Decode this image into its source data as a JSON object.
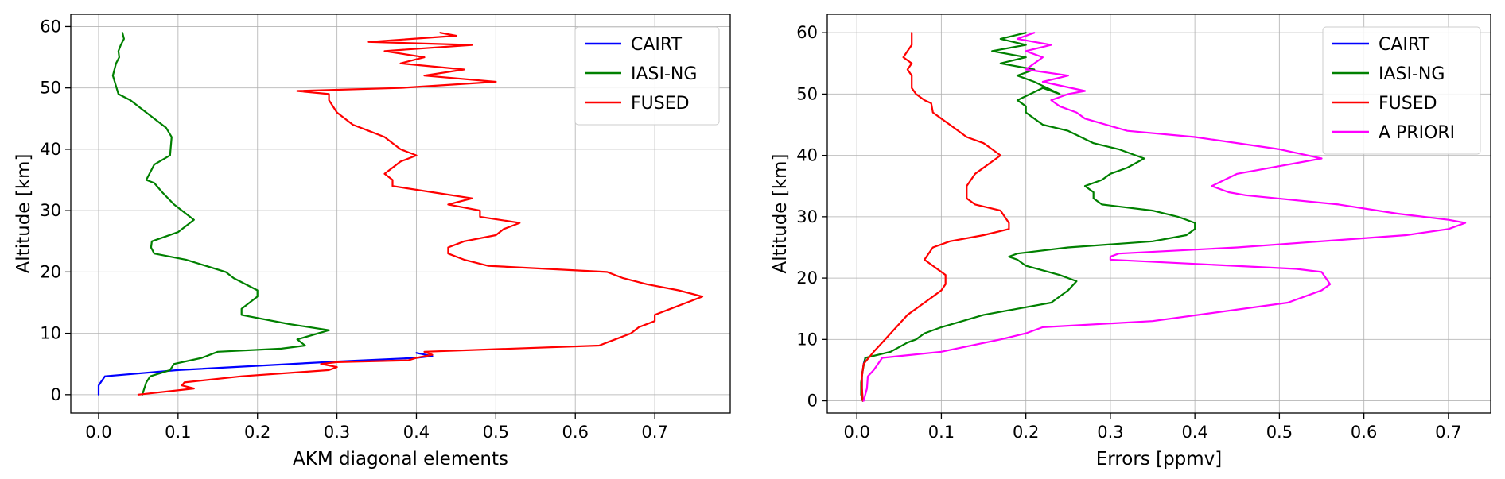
{
  "chart_data": [
    {
      "type": "line",
      "xlabel": "AKM diagonal elements",
      "ylabel": "Altitude [km]",
      "xlim": [
        -0.035,
        0.795
      ],
      "ylim": [
        -3,
        62
      ],
      "xticks": [
        "0.0",
        "0.1",
        "0.2",
        "0.3",
        "0.4",
        "0.5",
        "0.6",
        "0.7"
      ],
      "yticks": [
        "0",
        "10",
        "20",
        "30",
        "40",
        "50",
        "60"
      ],
      "grid": true,
      "legend_position": "upper right",
      "series": [
        {
          "name": "CAIRT",
          "color": "#0000ff",
          "points": [
            [
              0.0,
              0
            ],
            [
              0.0,
              1.5
            ],
            [
              0.008,
              3
            ],
            [
              0.1,
              4
            ],
            [
              0.2,
              4.7
            ],
            [
              0.3,
              5.4
            ],
            [
              0.4,
              6
            ],
            [
              0.42,
              6.3
            ],
            [
              0.4,
              6.8
            ]
          ]
        },
        {
          "name": "IASI-NG",
          "color": "#008000",
          "points": [
            [
              0.055,
              0
            ],
            [
              0.06,
              2
            ],
            [
              0.065,
              3
            ],
            [
              0.09,
              4
            ],
            [
              0.095,
              5
            ],
            [
              0.13,
              6
            ],
            [
              0.15,
              7
            ],
            [
              0.23,
              7.5
            ],
            [
              0.26,
              8
            ],
            [
              0.25,
              9
            ],
            [
              0.29,
              10.5
            ],
            [
              0.24,
              11.5
            ],
            [
              0.18,
              13
            ],
            [
              0.18,
              14
            ],
            [
              0.19,
              15
            ],
            [
              0.2,
              16
            ],
            [
              0.2,
              17
            ],
            [
              0.17,
              19
            ],
            [
              0.16,
              20
            ],
            [
              0.11,
              22
            ],
            [
              0.07,
              23
            ],
            [
              0.066,
              24
            ],
            [
              0.067,
              25
            ],
            [
              0.1,
              26.5
            ],
            [
              0.12,
              28.5
            ],
            [
              0.11,
              29.5
            ],
            [
              0.095,
              31
            ],
            [
              0.08,
              33
            ],
            [
              0.07,
              34.5
            ],
            [
              0.06,
              35
            ],
            [
              0.064,
              36
            ],
            [
              0.07,
              37.5
            ],
            [
              0.09,
              39
            ],
            [
              0.092,
              42
            ],
            [
              0.085,
              43.5
            ],
            [
              0.06,
              46
            ],
            [
              0.04,
              48
            ],
            [
              0.025,
              49
            ],
            [
              0.018,
              52
            ],
            [
              0.022,
              54
            ],
            [
              0.026,
              55
            ],
            [
              0.025,
              56
            ],
            [
              0.028,
              57
            ],
            [
              0.032,
              58
            ],
            [
              0.03,
              59
            ]
          ]
        },
        {
          "name": "FUSED",
          "color": "#ff0000",
          "points": [
            [
              0.05,
              0
            ],
            [
              0.12,
              1
            ],
            [
              0.105,
              1.5
            ],
            [
              0.108,
              2
            ],
            [
              0.18,
              3
            ],
            [
              0.29,
              4
            ],
            [
              0.3,
              4.5
            ],
            [
              0.28,
              5
            ],
            [
              0.3,
              5.3
            ],
            [
              0.39,
              5.6
            ],
            [
              0.4,
              6
            ],
            [
              0.42,
              6.5
            ],
            [
              0.41,
              7
            ],
            [
              0.63,
              8
            ],
            [
              0.65,
              9
            ],
            [
              0.67,
              10
            ],
            [
              0.68,
              11
            ],
            [
              0.7,
              12
            ],
            [
              0.7,
              13
            ],
            [
              0.72,
              14
            ],
            [
              0.74,
              15
            ],
            [
              0.76,
              16
            ],
            [
              0.73,
              17
            ],
            [
              0.69,
              18
            ],
            [
              0.66,
              19
            ],
            [
              0.64,
              20
            ],
            [
              0.49,
              21
            ],
            [
              0.46,
              22
            ],
            [
              0.44,
              23
            ],
            [
              0.44,
              24
            ],
            [
              0.46,
              25
            ],
            [
              0.5,
              26
            ],
            [
              0.51,
              27
            ],
            [
              0.53,
              28
            ],
            [
              0.48,
              29
            ],
            [
              0.48,
              30
            ],
            [
              0.44,
              31
            ],
            [
              0.47,
              32
            ],
            [
              0.42,
              33
            ],
            [
              0.37,
              34
            ],
            [
              0.37,
              35
            ],
            [
              0.36,
              36
            ],
            [
              0.37,
              37
            ],
            [
              0.38,
              38
            ],
            [
              0.4,
              39
            ],
            [
              0.38,
              40
            ],
            [
              0.37,
              41
            ],
            [
              0.36,
              42
            ],
            [
              0.34,
              43
            ],
            [
              0.32,
              44
            ],
            [
              0.3,
              46
            ],
            [
              0.29,
              48
            ],
            [
              0.29,
              49
            ],
            [
              0.25,
              49.5
            ],
            [
              0.38,
              50
            ],
            [
              0.5,
              51
            ],
            [
              0.41,
              52
            ],
            [
              0.46,
              53
            ],
            [
              0.38,
              54
            ],
            [
              0.41,
              55
            ],
            [
              0.36,
              56
            ],
            [
              0.47,
              57
            ],
            [
              0.34,
              57.5
            ],
            [
              0.45,
              58.5
            ],
            [
              0.43,
              59
            ]
          ]
        }
      ]
    },
    {
      "type": "line",
      "xlabel": "Errors [ppmv]",
      "ylabel": "Altitude [km]",
      "xlim": [
        -0.035,
        0.75
      ],
      "ylim": [
        -2,
        63
      ],
      "xticks": [
        "0.0",
        "0.1",
        "0.2",
        "0.3",
        "0.4",
        "0.5",
        "0.6",
        "0.7"
      ],
      "yticks": [
        "0",
        "10",
        "20",
        "30",
        "40",
        "50",
        "60"
      ],
      "grid": true,
      "legend_position": "upper right",
      "series": [
        {
          "name": "CAIRT",
          "color": "#0000ff",
          "points": [
            [
              0.007,
              0
            ],
            [
              0.006,
              2
            ],
            [
              0.006,
              4
            ],
            [
              0.008,
              6
            ],
            [
              0.01,
              7
            ]
          ]
        },
        {
          "name": "IASI-NG",
          "color": "#008000",
          "points": [
            [
              0.007,
              0
            ],
            [
              0.005,
              1
            ],
            [
              0.005,
              3
            ],
            [
              0.007,
              5
            ],
            [
              0.01,
              7
            ],
            [
              0.04,
              8
            ],
            [
              0.06,
              9.5
            ],
            [
              0.07,
              10
            ],
            [
              0.08,
              11
            ],
            [
              0.1,
              12
            ],
            [
              0.15,
              14
            ],
            [
              0.19,
              15
            ],
            [
              0.23,
              16
            ],
            [
              0.25,
              18
            ],
            [
              0.26,
              19.5
            ],
            [
              0.24,
              20.5
            ],
            [
              0.2,
              22
            ],
            [
              0.19,
              23
            ],
            [
              0.18,
              23.5
            ],
            [
              0.19,
              24
            ],
            [
              0.25,
              25
            ],
            [
              0.35,
              26
            ],
            [
              0.39,
              27
            ],
            [
              0.4,
              28
            ],
            [
              0.4,
              29
            ],
            [
              0.38,
              30
            ],
            [
              0.35,
              31
            ],
            [
              0.29,
              32
            ],
            [
              0.28,
              33
            ],
            [
              0.28,
              34
            ],
            [
              0.27,
              35
            ],
            [
              0.29,
              36
            ],
            [
              0.3,
              37
            ],
            [
              0.32,
              38
            ],
            [
              0.34,
              39.5
            ],
            [
              0.31,
              41
            ],
            [
              0.28,
              42
            ],
            [
              0.25,
              44
            ],
            [
              0.22,
              45
            ],
            [
              0.21,
              46
            ],
            [
              0.2,
              47
            ],
            [
              0.2,
              48
            ],
            [
              0.19,
              49
            ],
            [
              0.22,
              51
            ],
            [
              0.24,
              50
            ],
            [
              0.21,
              52
            ],
            [
              0.19,
              53
            ],
            [
              0.21,
              54
            ],
            [
              0.17,
              55
            ],
            [
              0.2,
              56
            ],
            [
              0.16,
              57
            ],
            [
              0.2,
              58
            ],
            [
              0.17,
              59
            ],
            [
              0.2,
              60
            ]
          ]
        },
        {
          "name": "FUSED",
          "color": "#ff0000",
          "points": [
            [
              0.007,
              0
            ],
            [
              0.006,
              2
            ],
            [
              0.006,
              4
            ],
            [
              0.008,
              6
            ],
            [
              0.02,
              8
            ],
            [
              0.03,
              9.5
            ],
            [
              0.04,
              11
            ],
            [
              0.05,
              12.5
            ],
            [
              0.06,
              14
            ],
            [
              0.08,
              16
            ],
            [
              0.09,
              17
            ],
            [
              0.1,
              18
            ],
            [
              0.105,
              19
            ],
            [
              0.105,
              20.5
            ],
            [
              0.09,
              22
            ],
            [
              0.08,
              23
            ],
            [
              0.09,
              25
            ],
            [
              0.11,
              26
            ],
            [
              0.15,
              27
            ],
            [
              0.18,
              28
            ],
            [
              0.18,
              29
            ],
            [
              0.17,
              31
            ],
            [
              0.14,
              32
            ],
            [
              0.13,
              33
            ],
            [
              0.13,
              35
            ],
            [
              0.14,
              37
            ],
            [
              0.16,
              39
            ],
            [
              0.17,
              40
            ],
            [
              0.16,
              41
            ],
            [
              0.15,
              42
            ],
            [
              0.13,
              43
            ],
            [
              0.11,
              45
            ],
            [
              0.1,
              46
            ],
            [
              0.09,
              47
            ],
            [
              0.088,
              48.5
            ],
            [
              0.08,
              49
            ],
            [
              0.07,
              50
            ],
            [
              0.065,
              51
            ],
            [
              0.065,
              53
            ],
            [
              0.06,
              54
            ],
            [
              0.065,
              55
            ],
            [
              0.055,
              56
            ],
            [
              0.06,
              57
            ],
            [
              0.065,
              58
            ],
            [
              0.065,
              60
            ]
          ]
        },
        {
          "name": "A PRIORI",
          "color": "#ff00ff",
          "points": [
            [
              0.008,
              0
            ],
            [
              0.012,
              2
            ],
            [
              0.013,
              4
            ],
            [
              0.02,
              5
            ],
            [
              0.03,
              7
            ],
            [
              0.1,
              8
            ],
            [
              0.17,
              10
            ],
            [
              0.2,
              11
            ],
            [
              0.22,
              12
            ],
            [
              0.35,
              13
            ],
            [
              0.51,
              16
            ],
            [
              0.55,
              18
            ],
            [
              0.56,
              19
            ],
            [
              0.55,
              21
            ],
            [
              0.52,
              21.5
            ],
            [
              0.3,
              23
            ],
            [
              0.3,
              23.5
            ],
            [
              0.31,
              24
            ],
            [
              0.45,
              25
            ],
            [
              0.65,
              27
            ],
            [
              0.7,
              28
            ],
            [
              0.72,
              29
            ],
            [
              0.7,
              29.5
            ],
            [
              0.64,
              30.5
            ],
            [
              0.57,
              32
            ],
            [
              0.46,
              33.5
            ],
            [
              0.44,
              34
            ],
            [
              0.42,
              35
            ],
            [
              0.45,
              37
            ],
            [
              0.49,
              38
            ],
            [
              0.55,
              39.5
            ],
            [
              0.5,
              41
            ],
            [
              0.4,
              43
            ],
            [
              0.32,
              44
            ],
            [
              0.27,
              46
            ],
            [
              0.26,
              47
            ],
            [
              0.24,
              48
            ],
            [
              0.23,
              49
            ],
            [
              0.25,
              50
            ],
            [
              0.27,
              50.5
            ],
            [
              0.22,
              52
            ],
            [
              0.25,
              53
            ],
            [
              0.2,
              54
            ],
            [
              0.22,
              56
            ],
            [
              0.2,
              57
            ],
            [
              0.23,
              58
            ],
            [
              0.19,
              59
            ],
            [
              0.21,
              60
            ]
          ]
        }
      ]
    }
  ]
}
